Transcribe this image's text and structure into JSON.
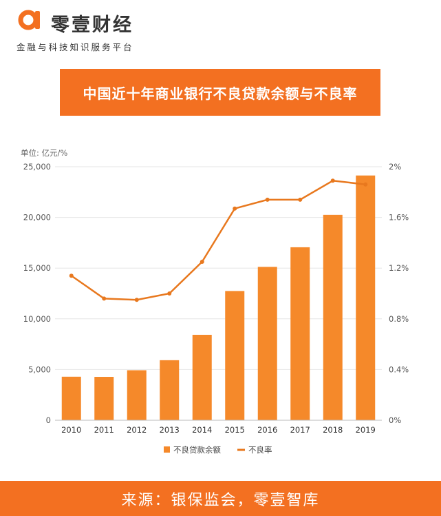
{
  "header": {
    "brand_name": "零壹财经",
    "tagline": "金融与科技知识服务平台"
  },
  "colors": {
    "accent": "#f37021",
    "bar": "#f5892a",
    "line": "#e8781e"
  },
  "chart_data": {
    "type": "bar",
    "title": "中国近十年商业银行不良贷款余额与不良率",
    "unit_label": "单位: 亿元/%",
    "categories": [
      "2010",
      "2011",
      "2012",
      "2013",
      "2014",
      "2015",
      "2016",
      "2017",
      "2018",
      "2019"
    ],
    "series": [
      {
        "name": "不良贷款余额",
        "type": "bar",
        "axis": "left",
        "values": [
          4293,
          4279,
          4929,
          5921,
          8426,
          12744,
          15122,
          17057,
          20254,
          24135
        ]
      },
      {
        "name": "不良率",
        "type": "line",
        "axis": "right",
        "values": [
          1.14,
          0.96,
          0.95,
          1.0,
          1.25,
          1.67,
          1.74,
          1.74,
          1.89,
          1.86
        ]
      }
    ],
    "y_left": {
      "min": 0,
      "max": 25000,
      "ticks": [
        "0",
        "5,000",
        "10,000",
        "15,000",
        "20,000",
        "25,000"
      ]
    },
    "y_right": {
      "min": 0,
      "max": 2,
      "ticks": [
        "0%",
        "0.4%",
        "0.8%",
        "1.2%",
        "1.6%",
        "2%"
      ]
    },
    "grid": true,
    "legend_position": "bottom"
  },
  "footer": {
    "source": "来源：银保监会，零壹智库"
  }
}
